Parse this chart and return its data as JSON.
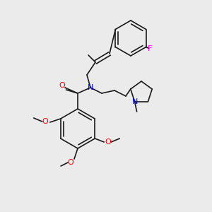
{
  "bg_color": "#ebebeb",
  "bond_color": "#1a1a1a",
  "atom_colors": {
    "N": "#0000ff",
    "O": "#ff0000",
    "F": "#ff00ff"
  },
  "font_size": 7.5,
  "line_width": 1.2
}
